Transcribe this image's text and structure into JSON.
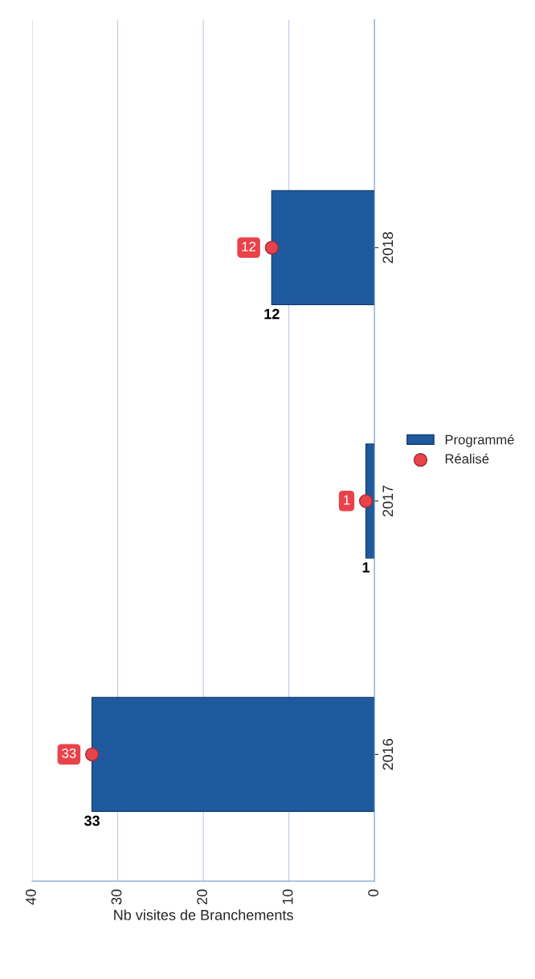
{
  "chart_data": {
    "type": "bar",
    "orientation": "horizontal",
    "xlabel": "Nb visites de Branchements",
    "categories": [
      "2018",
      "2017",
      "2016"
    ],
    "series": [
      {
        "name": "Programmé",
        "color": "#1f5a9e",
        "values": [
          12,
          1,
          33
        ]
      },
      {
        "name": "Réalisé",
        "type": "scatter",
        "color": "#e8434b",
        "marker": "circle",
        "values": [
          12,
          1,
          33
        ]
      }
    ],
    "xlim": [
      40,
      0
    ],
    "xticks": [
      0,
      10,
      20,
      30,
      40
    ],
    "grid": "x",
    "legend": "right",
    "data_labels": true
  }
}
